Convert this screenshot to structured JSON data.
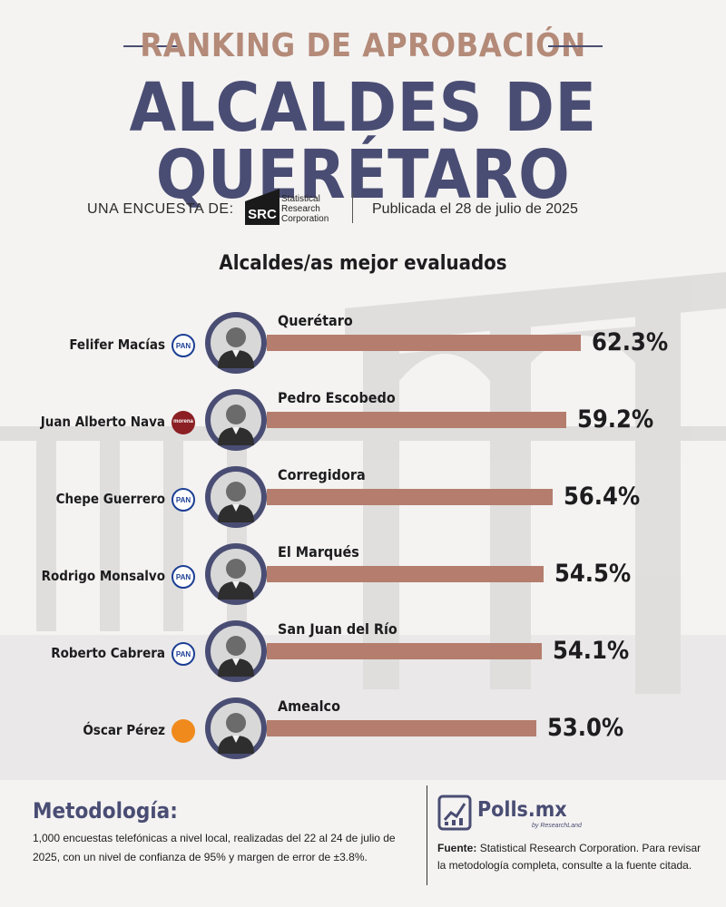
{
  "header": {
    "subtitle": "RANKING DE APROBACIÓN",
    "title": "ALCALDES DE QUERÉTARO"
  },
  "survey": {
    "label": "UNA ENCUESTA DE:",
    "logo_mark": "SRC",
    "logo_lines": [
      "Statistical",
      "Research",
      "Corporation"
    ],
    "published": "Publicada el 28 de julio de 2025"
  },
  "chart_data": {
    "type": "bar",
    "orientation": "horizontal",
    "title": "Alcaldes/as mejor evaluados",
    "categories": [
      "Felifer Macías",
      "Juan Alberto Nava",
      "Chepe Guerrero",
      "Rodrigo Monsalvo",
      "Roberto Cabrera",
      "Óscar Pérez"
    ],
    "municipalities": [
      "Querétaro",
      "Pedro Escobedo",
      "Corregidora",
      "El Marqués",
      "San Juan del Río",
      "Amealco"
    ],
    "parties": [
      "PAN",
      "morena",
      "PAN",
      "PAN",
      "PAN",
      "MC"
    ],
    "party_labels": [
      "PAN",
      "morena",
      "PAN",
      "PAN",
      "PAN",
      ""
    ],
    "values": [
      62.3,
      59.2,
      56.4,
      54.5,
      54.1,
      53.0
    ],
    "value_labels": [
      "62.3%",
      "59.2%",
      "56.4%",
      "54.5%",
      "54.1%",
      "53.0%"
    ],
    "unit": "%",
    "bar_color": "#b57d6d"
  },
  "methodology": {
    "title": "Metodología:",
    "text": "1,000 encuestas telefónicas a nivel local, realizadas del 22 al 24 de julio de 2025, con un nivel de confianza de 95% y margen de error de ±3.8%."
  },
  "footer": {
    "brand": "Polls.mx",
    "brand_sub": "by ResearchLand",
    "source_label": "Fuente:",
    "source_text": "Statistical Research Corporation. Para revisar la metodología completa, consulte a la fuente citada."
  },
  "colors": {
    "primary": "#4a4d73",
    "accent": "#b48a78",
    "pan": "#1c3f94",
    "morena": "#8b1f24",
    "mc": "#f08a1c"
  }
}
